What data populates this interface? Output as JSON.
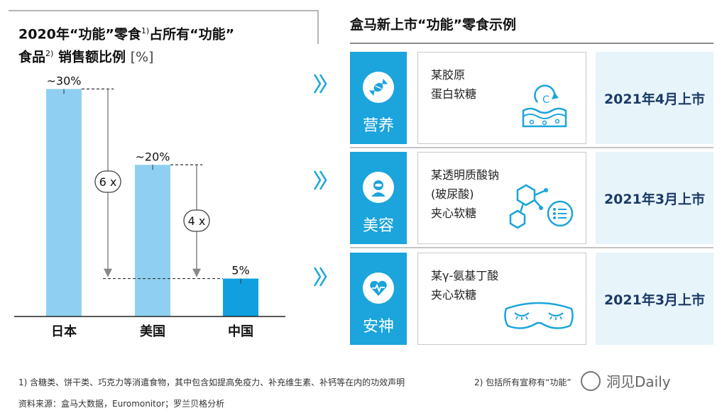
{
  "chart_title": {
    "part1": "2020年“功能”零食",
    "sup1": "1)",
    "part2": "占所有“功能”",
    "part3": "食品",
    "sup2": "2)",
    "part4": "销售额比例",
    "unit": "[%]"
  },
  "chart_data": {
    "type": "bar",
    "categories": [
      "日本",
      "美国",
      "中国"
    ],
    "values": [
      30,
      20,
      5
    ],
    "value_labels": [
      "~30%",
      "~20%",
      "5%"
    ],
    "ylim": [
      0,
      32
    ],
    "bar_colors": [
      "#8fd0f2",
      "#8fd0f2",
      "#10a0e0"
    ],
    "annotations": [
      {
        "label": "6 x",
        "from": "日本",
        "to": "中国"
      },
      {
        "label": "4 x",
        "from": "美国",
        "to": "中国"
      }
    ]
  },
  "panel": {
    "title": "盒马新上市“功能”零食示例",
    "rows": [
      {
        "category": "营养",
        "icon": "candy-icon",
        "product_lines": [
          "某胶原",
          "蛋白软糖"
        ],
        "product_icon": "collagen-icon",
        "launch": "2021年4月上市"
      },
      {
        "category": "美容",
        "icon": "beauty-face-icon",
        "product_lines": [
          "某透明质酸钠",
          "(玻尿酸)",
          "夹心软糖"
        ],
        "product_icon": "molecule-icon",
        "launch": "2021年3月上市"
      },
      {
        "category": "安神",
        "icon": "heart-pulse-icon",
        "product_lines": [
          "某γ-氨基丁酸",
          "夹心软糖"
        ],
        "product_icon": "sleep-mask-icon",
        "launch": "2021年3月上市"
      }
    ]
  },
  "footnotes": {
    "note1": "1) 含糖类、饼干类、巧克力等消遣食物，其中包含如提高免疫力、补充维生素、补钙等在内的功效声明",
    "note2": "2) 包括所有宣称有“功能”",
    "source": "资料来源：盒马大数据，Euromonitor；罗兰贝格分析"
  },
  "watermark": "洞见Daily",
  "colors": {
    "accent": "#1ca4dc",
    "launch_bg": "#e7f4fa",
    "launch_text": "#1b3b66"
  }
}
